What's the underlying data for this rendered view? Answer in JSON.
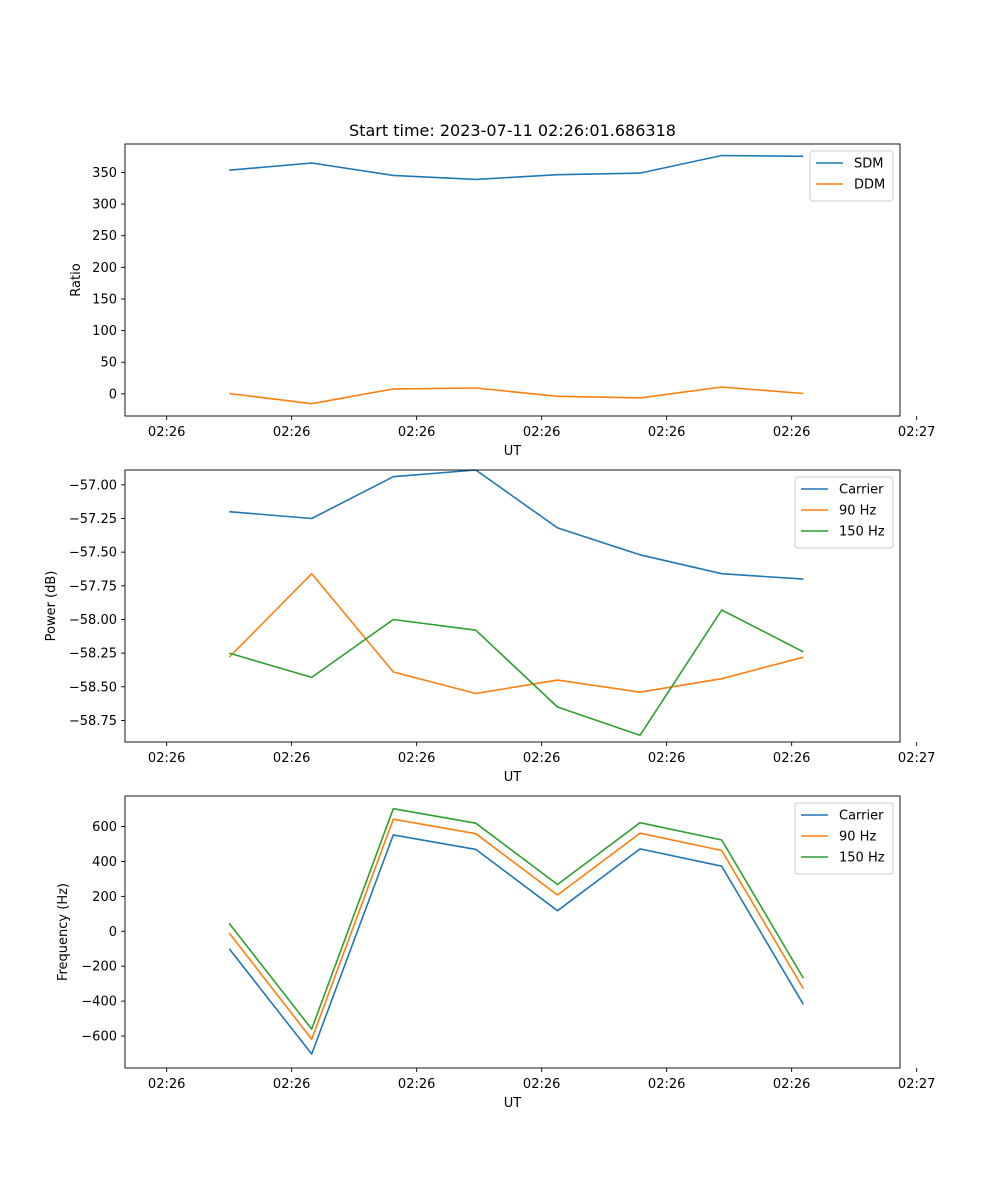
{
  "colors": {
    "series1": "#1f77b4",
    "series2": "#ff7f0e",
    "series3": "#2ca02c",
    "axis": "#000000"
  },
  "chart_data": [
    {
      "type": "line",
      "title": "Start time: 2023-07-11 02:26:01.686318",
      "xlabel": "UT",
      "ylabel": "Ratio",
      "xlim": [
        -0.5,
        8.8
      ],
      "x_ticks": [
        0,
        1.5,
        3,
        4.5,
        6,
        7.5,
        9
      ],
      "x_tick_labels": [
        "02:26",
        "02:26",
        "02:26",
        "02:26",
        "02:26",
        "02:26",
        "02:27"
      ],
      "ylim": [
        -35,
        395
      ],
      "y_ticks": [
        0,
        50,
        100,
        150,
        200,
        250,
        300,
        350
      ],
      "y_tick_labels": [
        "0",
        "50",
        "100",
        "150",
        "200",
        "250",
        "300",
        "350"
      ],
      "x": [
        0.75,
        1.74,
        2.72,
        3.71,
        4.69,
        5.68,
        6.66,
        7.64
      ],
      "series": [
        {
          "name": "SDM",
          "color": "#1f77b4",
          "values": [
            353.6,
            365.0,
            345.3,
            339.1,
            346.5,
            349.0,
            376.8,
            375.6
          ]
        },
        {
          "name": "DDM",
          "color": "#ff7f0e",
          "values": [
            0.5,
            -15.5,
            7.9,
            9.3,
            -3.9,
            -6.4,
            10.9,
            0.5
          ]
        }
      ],
      "legend": "top-right"
    },
    {
      "type": "line",
      "title": "",
      "xlabel": "UT",
      "ylabel": "Power (dB)",
      "xlim": [
        -0.5,
        8.8
      ],
      "x_ticks": [
        0,
        1.5,
        3,
        4.5,
        6,
        7.5,
        9
      ],
      "x_tick_labels": [
        "02:26",
        "02:26",
        "02:26",
        "02:26",
        "02:26",
        "02:26",
        "02:27"
      ],
      "ylim": [
        -58.91,
        -56.89
      ],
      "y_ticks": [
        -57.0,
        -57.25,
        -57.5,
        -57.75,
        -58.0,
        -58.25,
        -58.5,
        -58.75
      ],
      "y_tick_labels": [
        "−57.00",
        "−57.25",
        "−57.50",
        "−57.75",
        "−58.00",
        "−58.25",
        "−58.50",
        "−58.75"
      ],
      "x": [
        0.75,
        1.74,
        2.72,
        3.71,
        4.69,
        5.68,
        6.66,
        7.64
      ],
      "series": [
        {
          "name": "Carrier",
          "color": "#1f77b4",
          "values": [
            -57.2,
            -57.25,
            -56.94,
            -56.89,
            -57.32,
            -57.52,
            -57.66,
            -57.7
          ]
        },
        {
          "name": "90 Hz",
          "color": "#ff7f0e",
          "values": [
            -58.28,
            -57.66,
            -58.39,
            -58.55,
            -58.45,
            -58.54,
            -58.44,
            -58.28
          ]
        },
        {
          "name": "150 Hz",
          "color": "#2ca02c",
          "values": [
            -58.25,
            -58.43,
            -58.0,
            -58.08,
            -58.65,
            -58.86,
            -57.93,
            -58.24
          ]
        }
      ],
      "legend": "top-right"
    },
    {
      "type": "line",
      "title": "",
      "xlabel": "UT",
      "ylabel": "Frequency (Hz)",
      "xlim": [
        -0.5,
        8.8
      ],
      "x_ticks": [
        0,
        1.5,
        3,
        4.5,
        6,
        7.5,
        9
      ],
      "x_tick_labels": [
        "02:26",
        "02:26",
        "02:26",
        "02:26",
        "02:26",
        "02:26",
        "02:27"
      ],
      "ylim": [
        -783,
        775
      ],
      "y_ticks": [
        -600,
        -400,
        -200,
        0,
        200,
        400,
        600
      ],
      "y_tick_labels": [
        "−600",
        "−400",
        "−200",
        "0",
        "200",
        "400",
        "600"
      ],
      "x": [
        0.75,
        1.74,
        2.72,
        3.71,
        4.69,
        5.68,
        6.66,
        7.64
      ],
      "series": [
        {
          "name": "Carrier",
          "color": "#1f77b4",
          "values": [
            -100,
            -703,
            552,
            469,
            118,
            472,
            373,
            -418
          ]
        },
        {
          "name": "90 Hz",
          "color": "#ff7f0e",
          "values": [
            -10,
            -618,
            642,
            559,
            208,
            562,
            463,
            -328
          ]
        },
        {
          "name": "150 Hz",
          "color": "#2ca02c",
          "values": [
            45,
            -560,
            702,
            619,
            268,
            622,
            523,
            -268
          ]
        }
      ],
      "legend": "top-right"
    }
  ]
}
